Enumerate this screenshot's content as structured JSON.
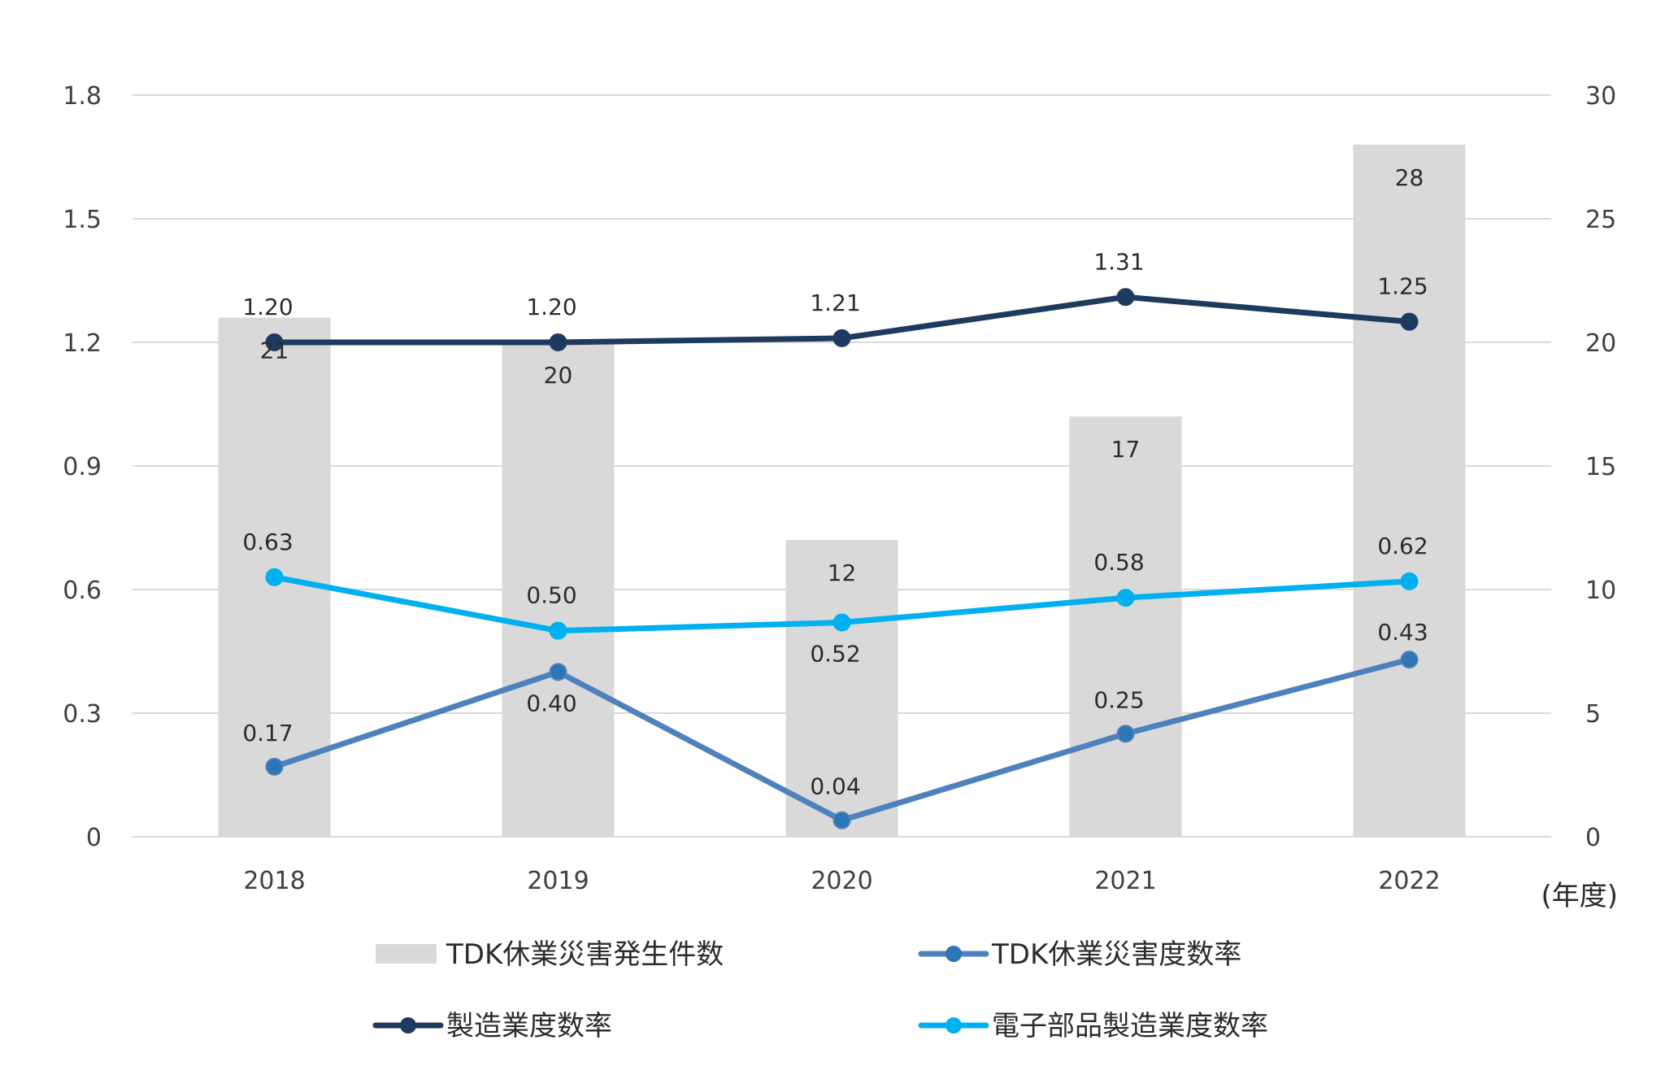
{
  "chart_data": {
    "type": "bar",
    "categories": [
      "2018",
      "2019",
      "2020",
      "2021",
      "2022"
    ],
    "x_unit_label": "(年度)",
    "left_axis": {
      "ticks": [
        "0",
        "0.3",
        "0.6",
        "0.9",
        "1.2",
        "1.5",
        "1.8"
      ],
      "ylim": [
        0,
        1.8
      ]
    },
    "right_axis": {
      "ticks": [
        "0",
        "5",
        "10",
        "15",
        "20",
        "25",
        "30"
      ],
      "ylim": [
        0,
        30
      ]
    },
    "grid": true,
    "legend_position": "bottom",
    "series": [
      {
        "name": "TDK休業災害発生件数",
        "kind": "bar",
        "axis": "right",
        "color": "#d9d9d9",
        "values": [
          21,
          20,
          12,
          17,
          28
        ],
        "labels": [
          "21",
          "20",
          "12",
          "17",
          "28"
        ]
      },
      {
        "name": "TDK休業災害度数率",
        "kind": "line",
        "axis": "left",
        "color": "#4f81bd",
        "marker_color": "#2e75b6",
        "values": [
          0.17,
          0.4,
          0.04,
          0.25,
          0.43
        ],
        "labels": [
          "0.17",
          "0.40",
          "0.04",
          "0.25",
          "0.43"
        ]
      },
      {
        "name": "製造業度数率",
        "kind": "line",
        "axis": "left",
        "color": "#1f3a5f",
        "values": [
          1.2,
          1.2,
          1.21,
          1.31,
          1.25
        ],
        "labels": [
          "1.20",
          "1.20",
          "1.21",
          "1.31",
          "1.25"
        ]
      },
      {
        "name": "電子部品製造業度数率",
        "kind": "line",
        "axis": "left",
        "color": "#00b0f0",
        "values": [
          0.63,
          0.5,
          0.52,
          0.58,
          0.62
        ],
        "labels": [
          "0.63",
          "0.50",
          "0.52",
          "0.58",
          "0.62"
        ]
      }
    ]
  }
}
